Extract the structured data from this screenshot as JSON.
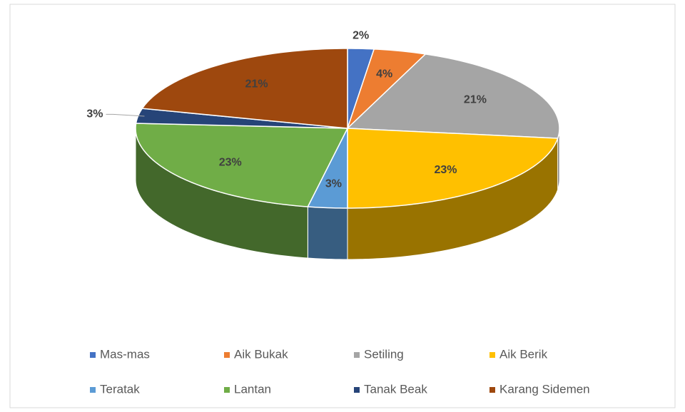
{
  "chart_data": {
    "type": "pie3d",
    "categories": [
      "Mas-mas",
      "Aik Bukak",
      "Setiling",
      "Aik Berik",
      "Teratak",
      "Lantan",
      "Tanak Beak",
      "Karang Sidemen"
    ],
    "values": [
      2,
      4,
      21,
      23,
      3,
      23,
      3,
      21
    ],
    "value_labels": [
      "2%",
      "4%",
      "21%",
      "23%",
      "3%",
      "23%",
      "3%",
      "21%"
    ],
    "colors": [
      "#4472c4",
      "#ed7d31",
      "#a5a5a5",
      "#ffc000",
      "#5b9bd5",
      "#70ad47",
      "#264478",
      "#9e480e"
    ],
    "legend": "bottom"
  }
}
